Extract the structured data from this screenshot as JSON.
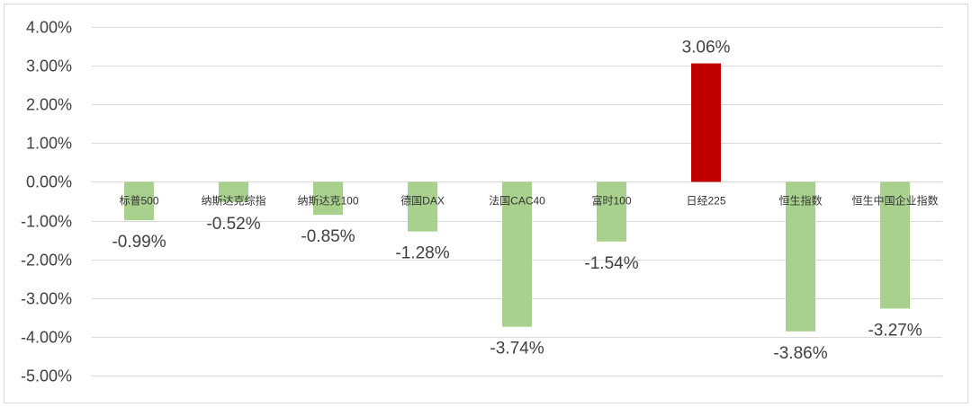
{
  "chart_data": {
    "type": "bar",
    "title": "",
    "xlabel": "",
    "ylabel": "",
    "categories": [
      "标普500",
      "纳斯达克综指",
      "纳斯达克100",
      "德国DAX",
      "法国CAC40",
      "富时100",
      "日经225",
      "恒生指数",
      "恒生中国企业指数"
    ],
    "values": [
      -0.99,
      -0.52,
      -0.85,
      -1.28,
      -3.74,
      -1.54,
      3.06,
      -3.86,
      -3.27
    ],
    "value_labels": [
      "-0.99%",
      "-0.52%",
      "-0.85%",
      "-1.28%",
      "-3.74%",
      "-1.54%",
      "3.06%",
      "-3.86%",
      "-3.27%"
    ],
    "yticks": [
      4,
      3,
      2,
      1,
      0,
      -1,
      -2,
      -3,
      -4,
      -5
    ],
    "ytick_labels": [
      "4.00%",
      "3.00%",
      "2.00%",
      "1.00%",
      "0.00%",
      "-1.00%",
      "-2.00%",
      "-3.00%",
      "-4.00%",
      "-5.00%"
    ],
    "ylim": [
      -5,
      4
    ],
    "grid": true,
    "legend": "none",
    "colors": {
      "negative": "#a9d18e",
      "positive": "#c00000",
      "grid": "#d9d9d9",
      "border": "#d9d9d9"
    }
  }
}
